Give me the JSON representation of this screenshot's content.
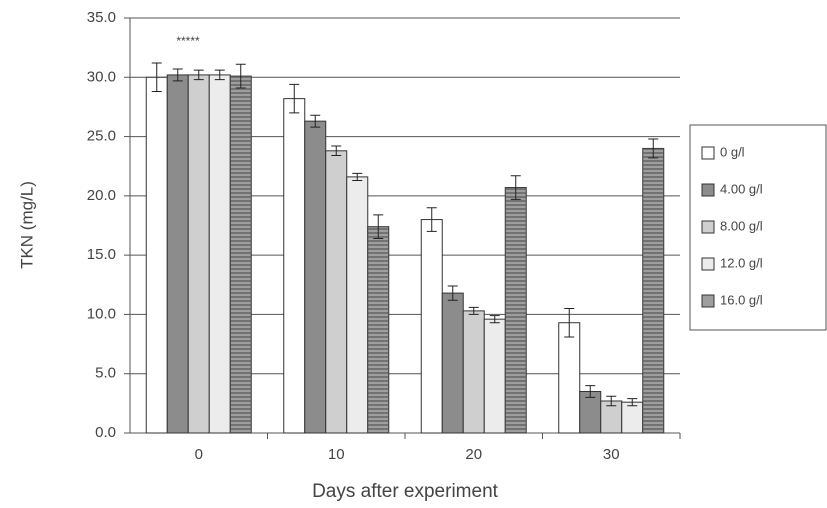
{
  "chart_data": {
    "type": "bar",
    "annotation": "*****",
    "x_label": "Days after experiment",
    "y_label": "TKN (mg/L)",
    "categories": [
      "0",
      "10",
      "20",
      "30"
    ],
    "series": [
      {
        "name": "0 g/l",
        "color": "#ffffff",
        "values": [
          30.0,
          28.2,
          18.0,
          9.3
        ],
        "errors": [
          1.2,
          1.2,
          1.0,
          1.2
        ]
      },
      {
        "name": "4.00 g/l",
        "color": "#8c8c8c",
        "values": [
          30.2,
          26.3,
          11.8,
          3.5
        ],
        "errors": [
          0.5,
          0.5,
          0.6,
          0.5
        ]
      },
      {
        "name": "8.00 g/l",
        "color": "#cfcfcf",
        "values": [
          30.2,
          23.8,
          10.3,
          2.7
        ],
        "errors": [
          0.4,
          0.4,
          0.3,
          0.4
        ]
      },
      {
        "name": "12.0 g/l",
        "color": "#ececec",
        "values": [
          30.2,
          21.6,
          9.6,
          2.6
        ],
        "errors": [
          0.4,
          0.3,
          0.3,
          0.3
        ]
      },
      {
        "name": "16.0 g/l",
        "color": "#9e9e9e",
        "values": [
          30.1,
          17.4,
          20.7,
          24.0
        ],
        "errors": [
          1.0,
          1.0,
          1.0,
          0.8
        ]
      }
    ],
    "ylim": [
      0,
      35
    ],
    "yticks": [
      {
        "value": 0,
        "label": "0.0"
      },
      {
        "value": 5,
        "label": "5.0"
      },
      {
        "value": 10,
        "label": "10.0"
      },
      {
        "value": 15,
        "label": "15.0"
      },
      {
        "value": 20,
        "label": "20.0"
      },
      {
        "value": 25,
        "label": "25.0"
      },
      {
        "value": 30,
        "label": "30.0"
      },
      {
        "value": 35,
        "label": "35.0"
      }
    ],
    "grid": true,
    "legend": "right"
  }
}
